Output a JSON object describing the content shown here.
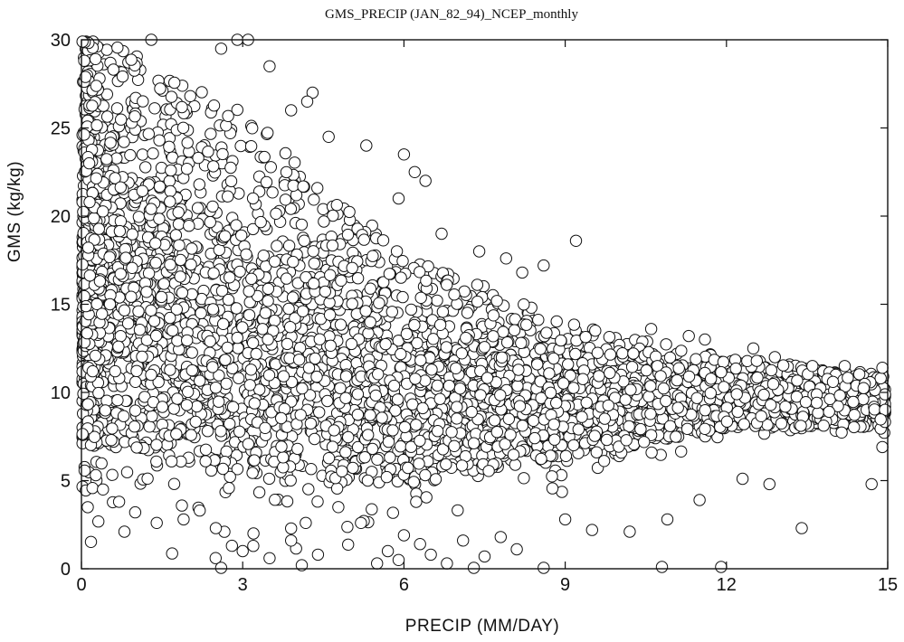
{
  "chart_data": {
    "type": "scatter",
    "title": "GMS_PRECIP (JAN_82_94)_NCEP_monthly",
    "xlabel": "PRECIP (MM/DAY)",
    "ylabel": "GMS (kg/kg)",
    "xlim": [
      0,
      15
    ],
    "ylim": [
      0,
      30
    ],
    "xticks": [
      0,
      3,
      6,
      9,
      12,
      15
    ],
    "yticks": [
      0,
      5,
      10,
      15,
      20,
      25,
      30
    ],
    "xtick_labels": [
      "0",
      "3",
      "6",
      "9",
      "12",
      "15"
    ],
    "ytick_labels": [
      "0",
      "5",
      "10",
      "15",
      "20",
      "25",
      "30"
    ],
    "grid": false,
    "legend": "none",
    "marker": "open-circle",
    "density_profile": [
      {
        "x": 0.5,
        "y_low": 7,
        "y_high": 30
      },
      {
        "x": 3,
        "y_low": 5,
        "y_high": 26
      },
      {
        "x": 6,
        "y_low": 5,
        "y_high": 18
      },
      {
        "x": 9,
        "y_low": 6,
        "y_high": 14
      },
      {
        "x": 12,
        "y_low": 8,
        "y_high": 12
      },
      {
        "x": 15,
        "y_low": 8,
        "y_high": 11
      }
    ],
    "outliers": [
      [
        1.3,
        30
      ],
      [
        2.9,
        30
      ],
      [
        3.1,
        30
      ],
      [
        2.6,
        29.5
      ],
      [
        3.5,
        28.5
      ],
      [
        3.9,
        26
      ],
      [
        4.3,
        27
      ],
      [
        4.2,
        26.5
      ],
      [
        4.6,
        24.5
      ],
      [
        5.3,
        24
      ],
      [
        6.0,
        23.5
      ],
      [
        6.2,
        22.5
      ],
      [
        6.4,
        22
      ],
      [
        5.9,
        21
      ],
      [
        6.7,
        19
      ],
      [
        9.2,
        18.6
      ],
      [
        8.6,
        17.2
      ],
      [
        7.9,
        17.6
      ],
      [
        8.2,
        16.8
      ],
      [
        7.4,
        18
      ],
      [
        10.6,
        13.6
      ],
      [
        11.3,
        13.2
      ],
      [
        11.6,
        13
      ],
      [
        12.5,
        12.5
      ],
      [
        12.9,
        12
      ],
      [
        13.6,
        11.5
      ],
      [
        14.2,
        11.5
      ],
      [
        14.9,
        11.4
      ],
      [
        0.4,
        4.5
      ],
      [
        0.7,
        3.8
      ],
      [
        1.0,
        3.2
      ],
      [
        0.8,
        2.1
      ],
      [
        1.4,
        2.6
      ],
      [
        1.9,
        2.8
      ],
      [
        2.2,
        3.3
      ],
      [
        2.5,
        2.3
      ],
      [
        2.6,
        0.05
      ],
      [
        2.8,
        1.3
      ],
      [
        3.0,
        1.0
      ],
      [
        3.2,
        2.0
      ],
      [
        3.5,
        0.6
      ],
      [
        3.9,
        1.6
      ],
      [
        4.1,
        0.2
      ],
      [
        4.4,
        0.8
      ],
      [
        5.2,
        2.6
      ],
      [
        5.5,
        0.3
      ],
      [
        5.7,
        1.0
      ],
      [
        5.9,
        0.5
      ],
      [
        6.0,
        1.9
      ],
      [
        6.3,
        1.4
      ],
      [
        6.5,
        0.8
      ],
      [
        6.8,
        0.3
      ],
      [
        7.1,
        1.6
      ],
      [
        7.3,
        0.05
      ],
      [
        7.5,
        0.7
      ],
      [
        7.8,
        1.8
      ],
      [
        8.1,
        1.1
      ],
      [
        8.6,
        0.05
      ],
      [
        9.0,
        2.8
      ],
      [
        9.5,
        2.2
      ],
      [
        10.2,
        2.1
      ],
      [
        10.8,
        0.1
      ],
      [
        10.9,
        2.8
      ],
      [
        11.5,
        3.9
      ],
      [
        11.9,
        0.1
      ],
      [
        12.3,
        5.1
      ],
      [
        12.8,
        4.8
      ],
      [
        13.4,
        2.3
      ],
      [
        14.7,
        4.8
      ],
      [
        14.9,
        6.9
      ]
    ]
  }
}
